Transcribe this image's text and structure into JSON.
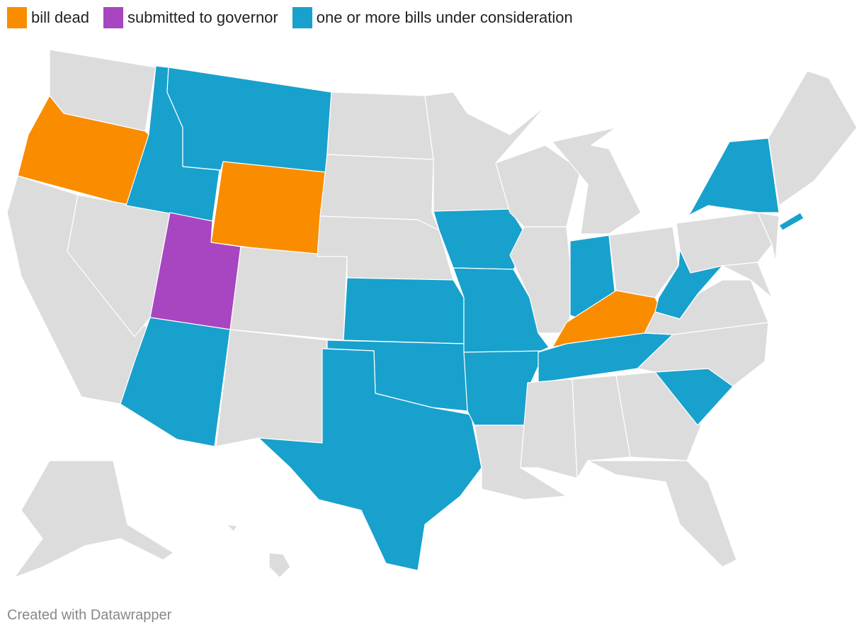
{
  "legend": [
    {
      "label": "bill dead",
      "color": "#fa8c00"
    },
    {
      "label": "submitted to governor",
      "color": "#a845c1"
    },
    {
      "label": "one or more bills under consideration",
      "color": "#18a1cd"
    }
  ],
  "base_color": "#dcdcdc",
  "footer": "Created with Datawrapper"
}
